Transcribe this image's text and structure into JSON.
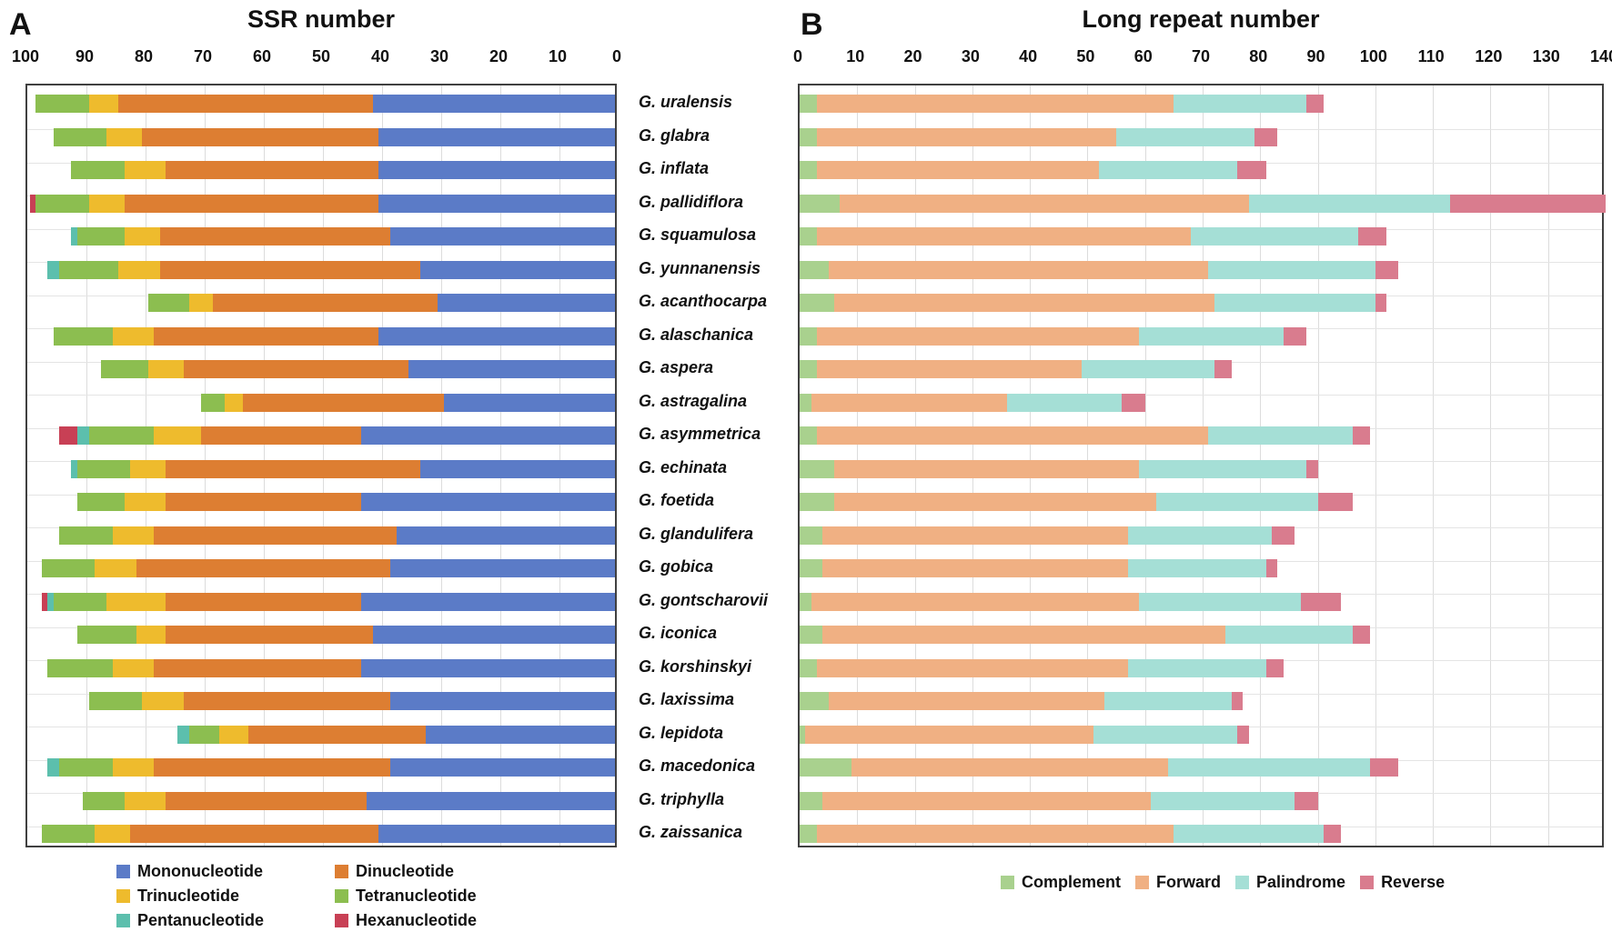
{
  "panels": {
    "a": {
      "letter": "A",
      "title": "SSR number"
    },
    "b": {
      "letter": "B",
      "title": "Long repeat number"
    }
  },
  "species": [
    "G. uralensis",
    "G. glabra",
    "G. inflata",
    "G. pallidiflora",
    "G. squamulosa",
    "G. yunnanensis",
    "G. acanthocarpa",
    "G. alaschanica",
    "G. aspera",
    "G. astragalina",
    "G. asymmetrica",
    "G. echinata",
    "G. foetida",
    "G. glandulifera",
    "G. gobica",
    "G. gontscharovii",
    "G. iconica",
    "G. korshinskyi",
    "G. laxissima",
    "G. lepidota",
    "G. macedonica",
    "G. triphylla",
    "G. zaissanica"
  ],
  "chart_data": [
    {
      "id": "a",
      "type": "bar",
      "orientation": "horizontal",
      "stacked": true,
      "axis_reversed": true,
      "title": "SSR number",
      "xlim": [
        0,
        100
      ],
      "xticks": [
        0,
        10,
        20,
        30,
        40,
        50,
        60,
        70,
        80,
        90,
        100
      ],
      "grid": true,
      "legend_position": "bottom-left",
      "categories": [
        "G. uralensis",
        "G. glabra",
        "G. inflata",
        "G. pallidiflora",
        "G. squamulosa",
        "G. yunnanensis",
        "G. acanthocarpa",
        "G. alaschanica",
        "G. aspera",
        "G. astragalina",
        "G. asymmetrica",
        "G. echinata",
        "G. foetida",
        "G. glandulifera",
        "G. gobica",
        "G. gontscharovii",
        "G. iconica",
        "G. korshinskyi",
        "G. laxissima",
        "G. lepidota",
        "G. macedonica",
        "G. triphylla",
        "G. zaissanica"
      ],
      "series": [
        {
          "name": "Mononucleotide",
          "color": "#5b7bc7",
          "values": [
            41,
            40,
            40,
            40,
            38,
            33,
            30,
            40,
            35,
            29,
            43,
            33,
            43,
            37,
            38,
            43,
            41,
            43,
            38,
            32,
            38,
            42,
            40
          ]
        },
        {
          "name": "Dinucleotide",
          "color": "#dd7e32",
          "values": [
            43,
            40,
            36,
            43,
            39,
            44,
            38,
            38,
            38,
            34,
            27,
            43,
            33,
            41,
            43,
            33,
            35,
            35,
            35,
            30,
            40,
            34,
            42
          ]
        },
        {
          "name": "Trinucleotide",
          "color": "#eebb2d",
          "values": [
            5,
            6,
            7,
            6,
            6,
            7,
            4,
            7,
            6,
            3,
            8,
            6,
            7,
            7,
            7,
            10,
            5,
            7,
            7,
            5,
            7,
            7,
            6
          ]
        },
        {
          "name": "Tetranucleotide",
          "color": "#8cbe50",
          "values": [
            9,
            9,
            9,
            9,
            8,
            10,
            7,
            10,
            8,
            4,
            11,
            9,
            8,
            9,
            9,
            9,
            10,
            11,
            9,
            5,
            9,
            7,
            9
          ]
        },
        {
          "name": "Pentanucleotide",
          "color": "#5cbfad",
          "values": [
            0,
            0,
            0,
            0,
            1,
            2,
            0,
            0,
            0,
            0,
            2,
            1,
            0,
            0,
            0,
            1,
            0,
            0,
            0,
            2,
            2,
            0,
            0
          ]
        },
        {
          "name": "Hexanucleotide",
          "color": "#c84055",
          "values": [
            0,
            0,
            0,
            1,
            0,
            0,
            0,
            0,
            0,
            0,
            3,
            0,
            0,
            0,
            0,
            1,
            0,
            0,
            0,
            0,
            0,
            0,
            0
          ]
        }
      ]
    },
    {
      "id": "b",
      "type": "bar",
      "orientation": "horizontal",
      "stacked": true,
      "axis_reversed": false,
      "title": "Long repeat number",
      "xlim": [
        0,
        140
      ],
      "xticks": [
        0,
        10,
        20,
        30,
        40,
        50,
        60,
        70,
        80,
        90,
        100,
        110,
        120,
        130,
        140
      ],
      "grid": true,
      "legend_position": "bottom-center",
      "categories": [
        "G. uralensis",
        "G. glabra",
        "G. inflata",
        "G. pallidiflora",
        "G. squamulosa",
        "G. yunnanensis",
        "G. acanthocarpa",
        "G. alaschanica",
        "G. aspera",
        "G. astragalina",
        "G. asymmetrica",
        "G. echinata",
        "G. foetida",
        "G. glandulifera",
        "G. gobica",
        "G. gontscharovii",
        "G. iconica",
        "G. korshinskyi",
        "G. laxissima",
        "G. lepidota",
        "G. macedonica",
        "G. triphylla",
        "G. zaissanica"
      ],
      "series": [
        {
          "name": "Complement",
          "color": "#a9d18e",
          "values": [
            3,
            3,
            3,
            7,
            3,
            5,
            6,
            3,
            3,
            2,
            3,
            6,
            6,
            4,
            4,
            2,
            4,
            3,
            5,
            1,
            9,
            4,
            3
          ]
        },
        {
          "name": "Forward",
          "color": "#f0b083",
          "values": [
            62,
            52,
            49,
            71,
            65,
            66,
            66,
            56,
            46,
            34,
            68,
            53,
            56,
            53,
            53,
            57,
            70,
            54,
            48,
            50,
            55,
            57,
            62
          ]
        },
        {
          "name": "Palindrome",
          "color": "#a5dfd6",
          "values": [
            23,
            24,
            24,
            35,
            29,
            29,
            28,
            25,
            23,
            20,
            25,
            29,
            28,
            25,
            24,
            28,
            22,
            24,
            22,
            25,
            35,
            25,
            26
          ]
        },
        {
          "name": "Reverse",
          "color": "#d97c8e",
          "values": [
            3,
            4,
            5,
            27,
            5,
            4,
            2,
            4,
            3,
            4,
            3,
            2,
            6,
            4,
            2,
            7,
            3,
            3,
            2,
            2,
            5,
            4,
            3
          ]
        }
      ]
    }
  ]
}
